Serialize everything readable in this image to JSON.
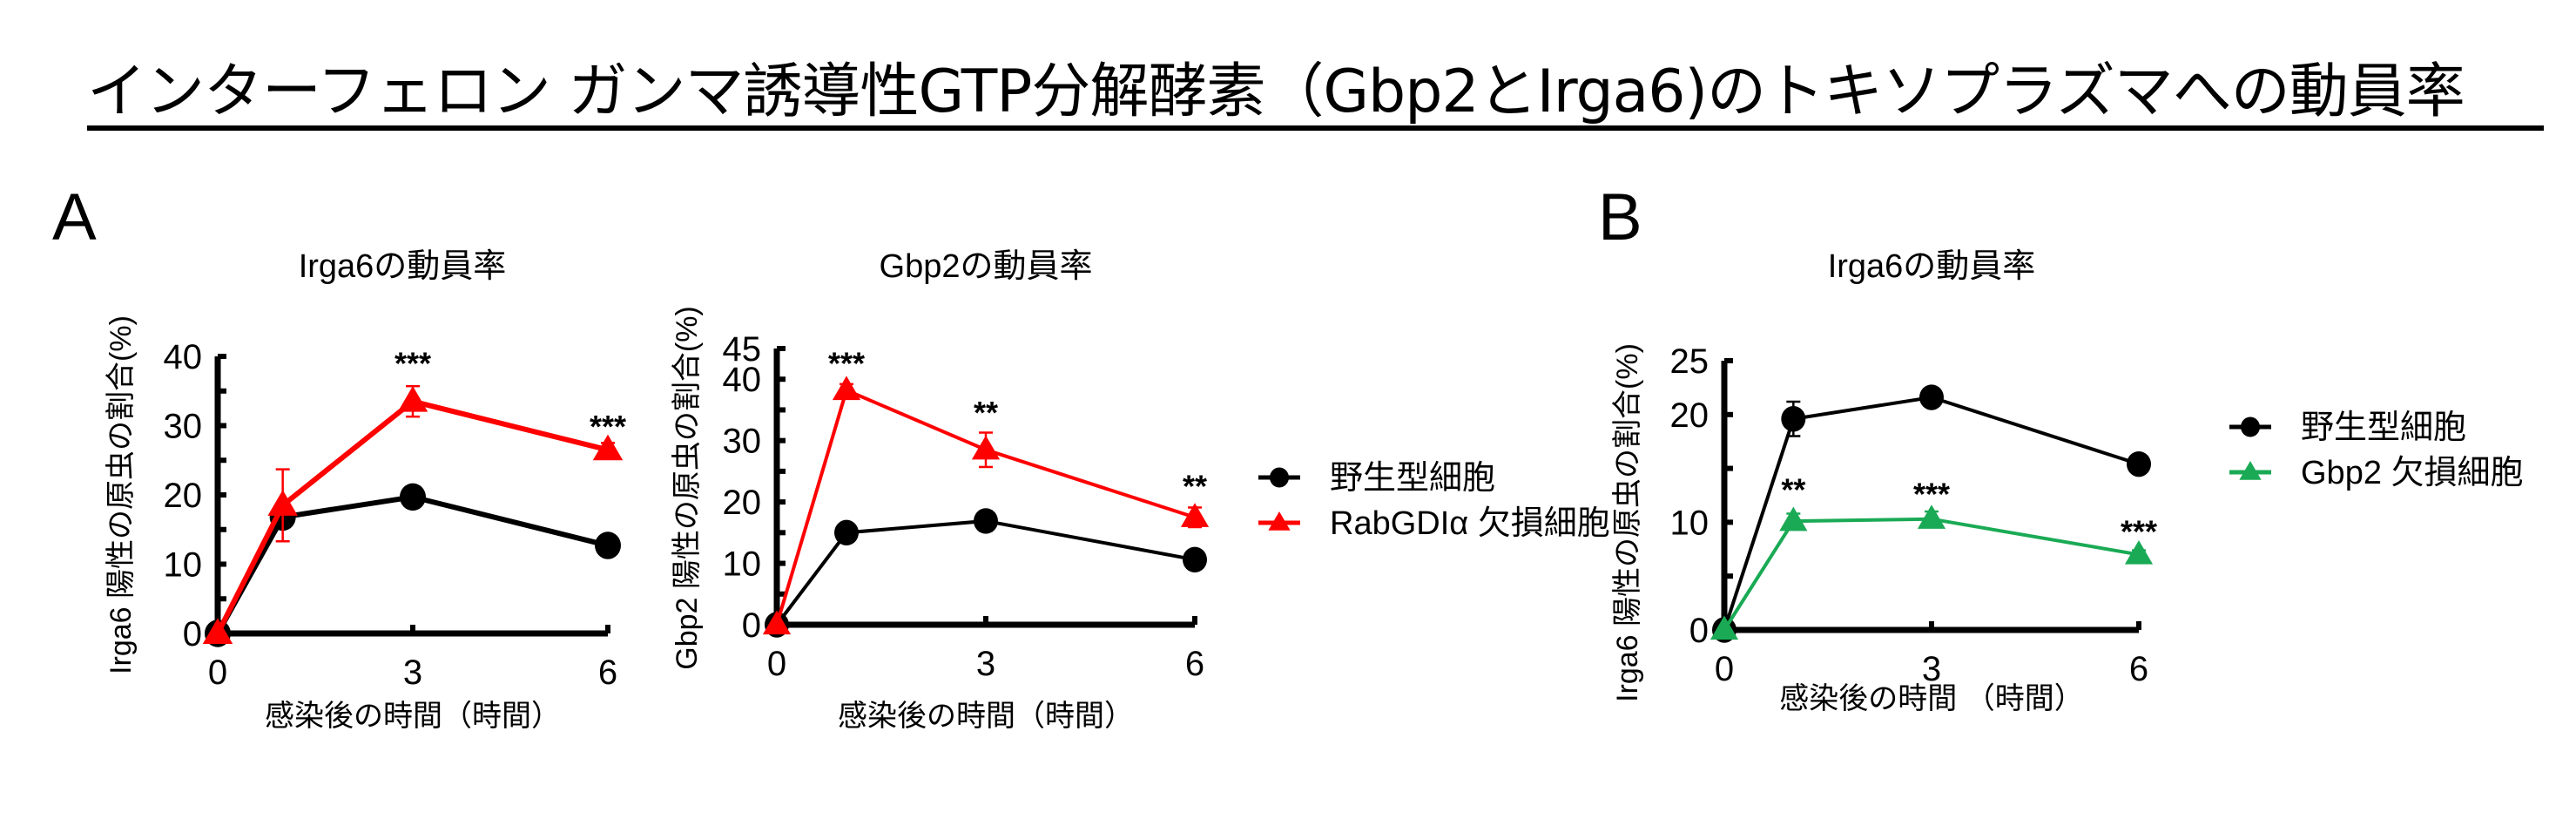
{
  "page": {
    "title": "インターフェロン ガンマ誘導性GTP分解酵素（Gbp2とIrga6)のトキソプラズマへの動員率",
    "panels": [
      {
        "letter": "A"
      },
      {
        "letter": "B"
      }
    ]
  },
  "colors": {
    "wild_type": "#000000",
    "rabgdi_ko": "#ff0000",
    "gbp2_ko": "#1aaa55",
    "axis": "#000000"
  },
  "chart_data": [
    {
      "id": "A1",
      "panel": "A",
      "type": "line",
      "title": "Irga6の動員率",
      "xlabel": "感染後の時間（時間）",
      "ylabel": "Irga6 陽性の原虫の割合(%)",
      "x": [
        0,
        1,
        3,
        6
      ],
      "xticks": [
        0,
        3,
        6
      ],
      "yticks": [
        0,
        10,
        20,
        30,
        40
      ],
      "ylim": [
        0,
        40
      ],
      "xlim": [
        0,
        6
      ],
      "legend_position": "right",
      "series": [
        {
          "name": "野生型細胞",
          "marker": "circle",
          "color": "#000000",
          "values": [
            0,
            16.8,
            19.7,
            12.7
          ],
          "errors": [
            0,
            1.0,
            1.0,
            1.0
          ]
        },
        {
          "name": "RabGDIα 欠損細胞",
          "marker": "triangle",
          "color": "#ff0000",
          "values": [
            0,
            18.5,
            33.5,
            26.5
          ],
          "errors": [
            0,
            5.2,
            2.2,
            1.0
          ]
        }
      ],
      "annotations": [
        {
          "x": 3,
          "text": "***",
          "y": 38.9
        },
        {
          "x": 6,
          "text": "***",
          "y": 29.8
        }
      ]
    },
    {
      "id": "A2",
      "panel": "A",
      "type": "line",
      "title": "Gbp2の動員率",
      "xlabel": "感染後の時間（時間）",
      "ylabel": "Gbp2 陽性の原虫の割合(%)",
      "x": [
        0,
        1,
        3,
        6
      ],
      "xticks": [
        0,
        3,
        6
      ],
      "yticks": [
        0,
        10,
        20,
        30,
        40,
        45
      ],
      "ylim": [
        0,
        45
      ],
      "xlim": [
        0,
        6
      ],
      "legend_position": "right",
      "series": [
        {
          "name": "野生型細胞",
          "marker": "circle",
          "color": "#000000",
          "values": [
            0,
            15.0,
            16.9,
            10.6
          ],
          "errors": [
            0,
            0.6,
            1.6,
            0.8
          ]
        },
        {
          "name": "RabGDIα 欠損細胞",
          "marker": "triangle",
          "color": "#ff0000",
          "values": [
            0,
            38.2,
            28.5,
            17.5
          ],
          "errors": [
            0,
            1.0,
            2.8,
            1.6
          ]
        }
      ],
      "annotations": [
        {
          "x": 1,
          "text": "***",
          "y": 42.5
        },
        {
          "x": 3,
          "text": "**",
          "y": 34.5
        },
        {
          "x": 6,
          "text": "**",
          "y": 22.5
        }
      ]
    },
    {
      "id": "B1",
      "panel": "B",
      "type": "line",
      "title": "Irga6の動員率",
      "xlabel": "感染後の時間 （時間）",
      "ylabel": "Irga6 陽性の原虫の割合(%)",
      "x": [
        0,
        1,
        3,
        6
      ],
      "xticks": [
        0,
        3,
        6
      ],
      "yticks": [
        0,
        10,
        20,
        25
      ],
      "ylim": [
        0,
        25
      ],
      "xlim": [
        0,
        6
      ],
      "legend_position": "right",
      "series": [
        {
          "name": "野生型細胞",
          "marker": "circle",
          "color": "#000000",
          "values": [
            0,
            19.6,
            21.6,
            15.4
          ],
          "errors": [
            0,
            1.6,
            0.7,
            0.5
          ]
        },
        {
          "name": "Gbp2 欠損細胞",
          "marker": "triangle",
          "color": "#1aaa55",
          "values": [
            0,
            10.1,
            10.3,
            7.0
          ],
          "errors": [
            0,
            0.7,
            0.7,
            0.4
          ]
        }
      ],
      "annotations": [
        {
          "x": 1,
          "text": "**",
          "y": 13.0
        },
        {
          "x": 3,
          "text": "***",
          "y": 12.6
        },
        {
          "x": 6,
          "text": "***",
          "y": 9.1
        }
      ]
    }
  ],
  "legends": [
    {
      "panel": "A",
      "items": [
        {
          "label": "野生型細胞",
          "marker": "circle",
          "color": "#000000"
        },
        {
          "label": "RabGDIα 欠損細胞",
          "marker": "triangle",
          "color": "#ff0000"
        }
      ]
    },
    {
      "panel": "B",
      "items": [
        {
          "label": "野生型細胞",
          "marker": "circle",
          "color": "#000000"
        },
        {
          "label": "Gbp2 欠損細胞",
          "marker": "triangle",
          "color": "#1aaa55"
        }
      ]
    }
  ]
}
